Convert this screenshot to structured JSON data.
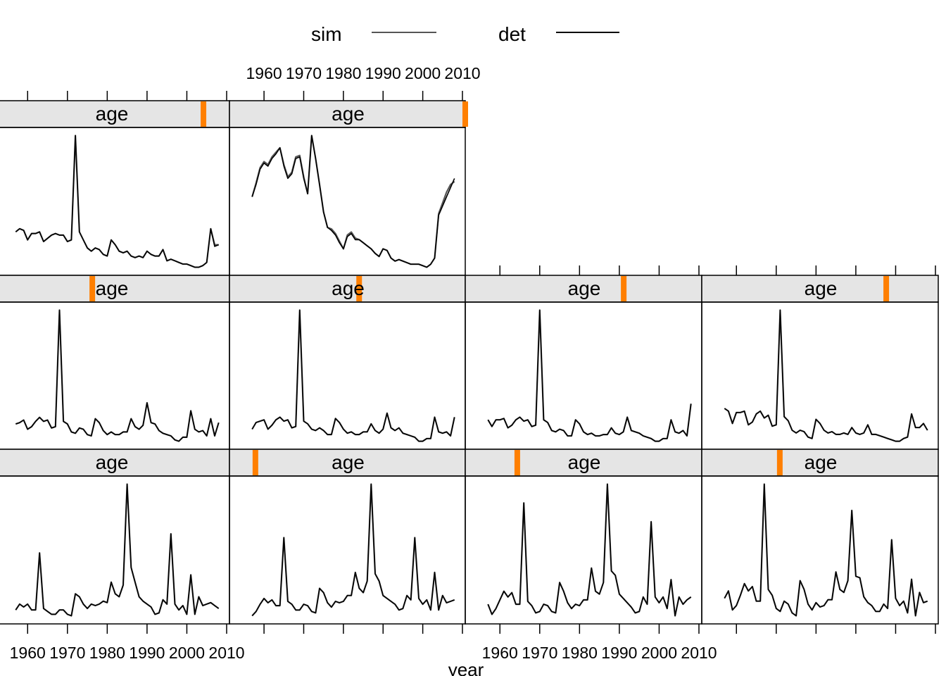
{
  "chart_data": {
    "type": "line",
    "layout": "lattice-grid",
    "xlabel": "year",
    "ylabel": "",
    "xlim": [
      1952,
      2010
    ],
    "x_ticks": [
      1960,
      1970,
      1980,
      1990,
      2000,
      2010
    ],
    "legend": {
      "placement": "top",
      "entries": [
        {
          "name": "sim",
          "color": "#555555"
        },
        {
          "name": "det",
          "color": "#000000"
        }
      ]
    },
    "strip": {
      "label": "age",
      "background": "#e5e5e5",
      "indicator_color": "#ff7f00"
    },
    "years": [
      1957,
      1958,
      1959,
      1960,
      1961,
      1962,
      1963,
      1964,
      1965,
      1966,
      1967,
      1968,
      1969,
      1970,
      1971,
      1972,
      1973,
      1974,
      1975,
      1976,
      1977,
      1978,
      1979,
      1980,
      1981,
      1982,
      1983,
      1984,
      1985,
      1986,
      1987,
      1988,
      1989,
      1990,
      1991,
      1992,
      1993,
      1994,
      1995,
      1996,
      1997,
      1998,
      1999,
      2000,
      2001,
      2002,
      2003,
      2004,
      2005,
      2006,
      2007,
      2008
    ],
    "panels": [
      {
        "strip": "age",
        "age_indicator": 0.89,
        "det": [
          0.3,
          0.32,
          0.31,
          0.25,
          0.29,
          0.29,
          0.3,
          0.24,
          0.26,
          0.28,
          0.29,
          0.28,
          0.28,
          0.24,
          0.25,
          0.9,
          0.3,
          0.25,
          0.2,
          0.18,
          0.2,
          0.19,
          0.16,
          0.15,
          0.25,
          0.22,
          0.18,
          0.17,
          0.18,
          0.15,
          0.14,
          0.15,
          0.14,
          0.18,
          0.16,
          0.15,
          0.15,
          0.19,
          0.12,
          0.13,
          0.12,
          0.11,
          0.1,
          0.1,
          0.09,
          0.08,
          0.08,
          0.09,
          0.11,
          0.32,
          0.21,
          0.22
        ],
        "sim": [
          0.3,
          0.32,
          0.31,
          0.25,
          0.29,
          0.29,
          0.3,
          0.24,
          0.26,
          0.28,
          0.29,
          0.28,
          0.28,
          0.24,
          0.25,
          0.9,
          0.3,
          0.25,
          0.2,
          0.18,
          0.2,
          0.19,
          0.16,
          0.15,
          0.25,
          0.22,
          0.18,
          0.17,
          0.18,
          0.15,
          0.14,
          0.15,
          0.14,
          0.18,
          0.16,
          0.15,
          0.15,
          0.19,
          0.12,
          0.13,
          0.12,
          0.11,
          0.1,
          0.1,
          0.09,
          0.08,
          0.08,
          0.09,
          0.11,
          0.32,
          0.22,
          0.22
        ]
      },
      {
        "strip": "age",
        "age_indicator": 1.0,
        "det": [
          0.5,
          0.58,
          0.68,
          0.72,
          0.7,
          0.75,
          0.78,
          0.82,
          0.7,
          0.62,
          0.65,
          0.75,
          0.76,
          0.62,
          0.52,
          0.9,
          0.75,
          0.58,
          0.4,
          0.3,
          0.28,
          0.25,
          0.2,
          0.16,
          0.24,
          0.26,
          0.22,
          0.22,
          0.2,
          0.18,
          0.16,
          0.13,
          0.11,
          0.16,
          0.15,
          0.1,
          0.08,
          0.09,
          0.08,
          0.07,
          0.06,
          0.06,
          0.06,
          0.05,
          0.04,
          0.06,
          0.1,
          0.38,
          0.44,
          0.5,
          0.56,
          0.62
        ],
        "sim": [
          0.5,
          0.59,
          0.69,
          0.73,
          0.71,
          0.76,
          0.79,
          0.82,
          0.71,
          0.63,
          0.66,
          0.76,
          0.77,
          0.63,
          0.52,
          0.9,
          0.75,
          0.58,
          0.4,
          0.3,
          0.29,
          0.26,
          0.21,
          0.16,
          0.25,
          0.27,
          0.23,
          0.22,
          0.2,
          0.18,
          0.16,
          0.13,
          0.11,
          0.16,
          0.15,
          0.1,
          0.08,
          0.09,
          0.08,
          0.07,
          0.06,
          0.06,
          0.06,
          0.05,
          0.04,
          0.06,
          0.1,
          0.39,
          0.46,
          0.53,
          0.58,
          0.6
        ]
      },
      {
        "strip": "age",
        "age_indicator": 0.42,
        "det": [
          0.12,
          0.13,
          0.15,
          0.08,
          0.1,
          0.14,
          0.17,
          0.14,
          0.15,
          0.09,
          0.1,
          0.98,
          0.14,
          0.12,
          0.06,
          0.05,
          0.09,
          0.08,
          0.04,
          0.03,
          0.16,
          0.13,
          0.07,
          0.04,
          0.06,
          0.04,
          0.04,
          0.06,
          0.06,
          0.16,
          0.1,
          0.08,
          0.11,
          0.28,
          0.13,
          0.12,
          0.07,
          0.05,
          0.04,
          0.03,
          0.0,
          -0.01,
          0.02,
          0.02,
          0.22,
          0.08,
          0.06,
          0.07,
          0.03,
          0.16,
          0.03,
          0.13
        ],
        "sim": [
          0.12,
          0.13,
          0.15,
          0.08,
          0.1,
          0.14,
          0.17,
          0.14,
          0.15,
          0.09,
          0.1,
          0.98,
          0.14,
          0.12,
          0.06,
          0.05,
          0.09,
          0.08,
          0.04,
          0.03,
          0.16,
          0.13,
          0.07,
          0.04,
          0.06,
          0.04,
          0.04,
          0.06,
          0.06,
          0.16,
          0.1,
          0.08,
          0.11,
          0.28,
          0.13,
          0.12,
          0.07,
          0.05,
          0.04,
          0.03,
          0.0,
          -0.01,
          0.02,
          0.02,
          0.22,
          0.08,
          0.06,
          0.07,
          0.03,
          0.16,
          0.03,
          0.13
        ]
      },
      {
        "strip": "age",
        "age_indicator": 0.55,
        "det": [
          0.09,
          0.14,
          0.15,
          0.16,
          0.09,
          0.12,
          0.16,
          0.18,
          0.15,
          0.16,
          0.1,
          0.11,
          0.98,
          0.15,
          0.13,
          0.09,
          0.08,
          0.1,
          0.08,
          0.05,
          0.05,
          0.17,
          0.14,
          0.09,
          0.06,
          0.07,
          0.05,
          0.05,
          0.07,
          0.07,
          0.13,
          0.08,
          0.06,
          0.09,
          0.21,
          0.1,
          0.08,
          0.1,
          0.06,
          0.05,
          0.04,
          0.03,
          0.0,
          0.0,
          0.02,
          0.02,
          0.18,
          0.07,
          0.06,
          0.07,
          0.04,
          0.18
        ],
        "sim": [
          0.09,
          0.14,
          0.15,
          0.16,
          0.09,
          0.12,
          0.16,
          0.18,
          0.15,
          0.16,
          0.1,
          0.11,
          0.98,
          0.15,
          0.13,
          0.09,
          0.08,
          0.1,
          0.08,
          0.05,
          0.05,
          0.17,
          0.14,
          0.09,
          0.06,
          0.07,
          0.05,
          0.05,
          0.07,
          0.07,
          0.13,
          0.08,
          0.06,
          0.09,
          0.21,
          0.1,
          0.08,
          0.1,
          0.06,
          0.05,
          0.04,
          0.03,
          0.0,
          0.0,
          0.02,
          0.02,
          0.18,
          0.07,
          0.06,
          0.07,
          0.04,
          0.18
        ]
      },
      {
        "strip": "age",
        "age_indicator": 0.67,
        "det": [
          0.16,
          0.11,
          0.16,
          0.16,
          0.17,
          0.1,
          0.12,
          0.16,
          0.18,
          0.15,
          0.16,
          0.11,
          0.12,
          0.98,
          0.16,
          0.14,
          0.08,
          0.07,
          0.09,
          0.08,
          0.04,
          0.04,
          0.16,
          0.13,
          0.07,
          0.05,
          0.06,
          0.04,
          0.04,
          0.05,
          0.05,
          0.1,
          0.06,
          0.05,
          0.07,
          0.18,
          0.08,
          0.07,
          0.06,
          0.04,
          0.03,
          0.02,
          0.0,
          0.0,
          0.02,
          0.02,
          0.16,
          0.07,
          0.06,
          0.08,
          0.04,
          0.28
        ],
        "sim": [
          0.16,
          0.11,
          0.16,
          0.16,
          0.17,
          0.1,
          0.12,
          0.16,
          0.18,
          0.15,
          0.16,
          0.11,
          0.12,
          0.98,
          0.16,
          0.14,
          0.08,
          0.07,
          0.09,
          0.08,
          0.04,
          0.04,
          0.16,
          0.13,
          0.07,
          0.05,
          0.06,
          0.04,
          0.04,
          0.05,
          0.05,
          0.1,
          0.06,
          0.05,
          0.07,
          0.18,
          0.08,
          0.07,
          0.06,
          0.04,
          0.03,
          0.02,
          0.0,
          0.0,
          0.02,
          0.02,
          0.16,
          0.07,
          0.06,
          0.08,
          0.04,
          0.28
        ]
      },
      {
        "strip": "age",
        "age_indicator": 0.78,
        "det": [
          0.26,
          0.24,
          0.15,
          0.23,
          0.23,
          0.24,
          0.14,
          0.16,
          0.22,
          0.24,
          0.19,
          0.21,
          0.13,
          0.14,
          0.98,
          0.2,
          0.17,
          0.1,
          0.08,
          0.1,
          0.09,
          0.05,
          0.04,
          0.18,
          0.15,
          0.1,
          0.08,
          0.09,
          0.07,
          0.07,
          0.08,
          0.07,
          0.12,
          0.08,
          0.07,
          0.08,
          0.14,
          0.07,
          0.07,
          0.06,
          0.05,
          0.04,
          0.03,
          0.02,
          0.02,
          0.04,
          0.05,
          0.22,
          0.12,
          0.12,
          0.15,
          0.1
        ],
        "sim": [
          0.26,
          0.24,
          0.15,
          0.23,
          0.23,
          0.24,
          0.14,
          0.16,
          0.22,
          0.24,
          0.19,
          0.21,
          0.13,
          0.14,
          0.98,
          0.2,
          0.17,
          0.1,
          0.08,
          0.1,
          0.09,
          0.05,
          0.04,
          0.18,
          0.15,
          0.1,
          0.08,
          0.09,
          0.07,
          0.07,
          0.08,
          0.07,
          0.12,
          0.08,
          0.07,
          0.08,
          0.14,
          0.07,
          0.07,
          0.06,
          0.05,
          0.04,
          0.03,
          0.02,
          0.02,
          0.04,
          0.05,
          0.22,
          0.12,
          0.12,
          0.15,
          0.1
        ]
      },
      {
        "strip": "age",
        "age_indicator": null,
        "det": [
          0.11,
          0.15,
          0.13,
          0.15,
          0.11,
          0.11,
          0.5,
          0.12,
          0.1,
          0.08,
          0.08,
          0.11,
          0.11,
          0.08,
          0.07,
          0.22,
          0.2,
          0.15,
          0.12,
          0.15,
          0.14,
          0.15,
          0.17,
          0.16,
          0.3,
          0.22,
          0.2,
          0.28,
          0.97,
          0.4,
          0.3,
          0.2,
          0.17,
          0.15,
          0.13,
          0.08,
          0.09,
          0.18,
          0.15,
          0.63,
          0.15,
          0.11,
          0.14,
          0.08,
          0.35,
          0.08,
          0.2,
          0.14,
          0.15,
          0.16,
          0.14,
          0.12
        ],
        "sim": [
          0.11,
          0.15,
          0.13,
          0.15,
          0.11,
          0.11,
          0.5,
          0.12,
          0.1,
          0.08,
          0.08,
          0.11,
          0.11,
          0.08,
          0.07,
          0.22,
          0.2,
          0.15,
          0.12,
          0.15,
          0.14,
          0.15,
          0.17,
          0.16,
          0.3,
          0.22,
          0.2,
          0.28,
          0.97,
          0.4,
          0.3,
          0.2,
          0.17,
          0.15,
          0.13,
          0.08,
          0.09,
          0.18,
          0.15,
          0.63,
          0.15,
          0.11,
          0.14,
          0.08,
          0.35,
          0.08,
          0.2,
          0.14,
          0.15,
          0.16,
          0.14,
          0.12
        ]
      },
      {
        "strip": "age",
        "age_indicator": 0.11,
        "det": [
          0.06,
          0.09,
          0.14,
          0.18,
          0.15,
          0.17,
          0.13,
          0.13,
          0.6,
          0.16,
          0.14,
          0.1,
          0.1,
          0.14,
          0.13,
          0.09,
          0.08,
          0.25,
          0.22,
          0.15,
          0.12,
          0.16,
          0.15,
          0.16,
          0.2,
          0.2,
          0.36,
          0.25,
          0.22,
          0.3,
          0.97,
          0.35,
          0.3,
          0.2,
          0.18,
          0.16,
          0.14,
          0.1,
          0.11,
          0.2,
          0.17,
          0.6,
          0.18,
          0.14,
          0.17,
          0.1,
          0.36,
          0.1,
          0.2,
          0.15,
          0.16,
          0.17
        ],
        "sim": [
          0.06,
          0.09,
          0.14,
          0.18,
          0.15,
          0.17,
          0.13,
          0.13,
          0.6,
          0.16,
          0.14,
          0.1,
          0.1,
          0.14,
          0.13,
          0.09,
          0.08,
          0.25,
          0.22,
          0.15,
          0.12,
          0.16,
          0.15,
          0.16,
          0.2,
          0.2,
          0.36,
          0.25,
          0.22,
          0.3,
          0.97,
          0.35,
          0.3,
          0.2,
          0.18,
          0.16,
          0.14,
          0.1,
          0.11,
          0.2,
          0.17,
          0.6,
          0.18,
          0.14,
          0.17,
          0.1,
          0.36,
          0.1,
          0.2,
          0.15,
          0.16,
          0.17
        ]
      },
      {
        "strip": "age",
        "age_indicator": 0.22,
        "det": [
          0.15,
          0.08,
          0.12,
          0.18,
          0.24,
          0.2,
          0.23,
          0.15,
          0.15,
          0.85,
          0.17,
          0.14,
          0.09,
          0.1,
          0.15,
          0.14,
          0.1,
          0.09,
          0.3,
          0.24,
          0.16,
          0.12,
          0.15,
          0.14,
          0.18,
          0.18,
          0.4,
          0.24,
          0.22,
          0.3,
          0.98,
          0.38,
          0.35,
          0.22,
          0.19,
          0.16,
          0.13,
          0.09,
          0.1,
          0.2,
          0.15,
          0.72,
          0.2,
          0.16,
          0.2,
          0.12,
          0.32,
          0.07,
          0.2,
          0.15,
          0.18,
          0.2
        ],
        "sim": [
          0.15,
          0.08,
          0.12,
          0.18,
          0.24,
          0.2,
          0.23,
          0.15,
          0.15,
          0.85,
          0.17,
          0.14,
          0.09,
          0.1,
          0.15,
          0.14,
          0.1,
          0.09,
          0.3,
          0.24,
          0.16,
          0.12,
          0.15,
          0.14,
          0.18,
          0.18,
          0.4,
          0.24,
          0.22,
          0.3,
          0.98,
          0.38,
          0.35,
          0.22,
          0.19,
          0.16,
          0.13,
          0.09,
          0.1,
          0.2,
          0.15,
          0.72,
          0.2,
          0.16,
          0.2,
          0.12,
          0.32,
          0.07,
          0.2,
          0.15,
          0.18,
          0.2
        ]
      },
      {
        "strip": "age",
        "age_indicator": 0.33,
        "det": [
          0.2,
          0.25,
          0.12,
          0.15,
          0.22,
          0.3,
          0.25,
          0.28,
          0.18,
          0.18,
          0.98,
          0.26,
          0.22,
          0.13,
          0.11,
          0.18,
          0.16,
          0.1,
          0.08,
          0.32,
          0.26,
          0.16,
          0.12,
          0.17,
          0.14,
          0.15,
          0.19,
          0.19,
          0.38,
          0.26,
          0.24,
          0.32,
          0.8,
          0.35,
          0.34,
          0.21,
          0.17,
          0.15,
          0.11,
          0.11,
          0.16,
          0.13,
          0.6,
          0.2,
          0.15,
          0.18,
          0.1,
          0.33,
          0.08,
          0.24,
          0.17,
          0.18
        ],
        "sim": [
          0.2,
          0.25,
          0.12,
          0.15,
          0.22,
          0.3,
          0.25,
          0.28,
          0.18,
          0.18,
          0.98,
          0.26,
          0.22,
          0.13,
          0.11,
          0.18,
          0.16,
          0.1,
          0.08,
          0.32,
          0.26,
          0.16,
          0.12,
          0.17,
          0.14,
          0.15,
          0.19,
          0.19,
          0.38,
          0.26,
          0.24,
          0.32,
          0.8,
          0.35,
          0.34,
          0.21,
          0.17,
          0.15,
          0.11,
          0.11,
          0.16,
          0.13,
          0.6,
          0.2,
          0.15,
          0.18,
          0.1,
          0.33,
          0.08,
          0.24,
          0.17,
          0.18
        ]
      }
    ]
  }
}
